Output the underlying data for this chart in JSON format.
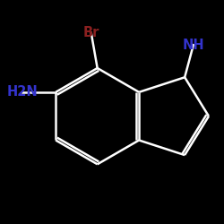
{
  "background": "#000000",
  "bond_color": "#ffffff",
  "bond_lw": 1.8,
  "font_size_label": 10.5,
  "Br_color": "#8b2020",
  "N_color": "#3333cc",
  "NH_label": "NH",
  "NH2_label": "H2N",
  "Br_label": "Br"
}
